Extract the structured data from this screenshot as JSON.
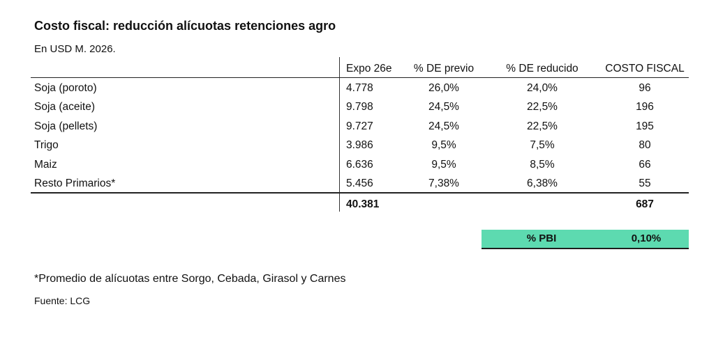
{
  "title": "Costo fiscal: reducción alícuotas retenciones agro",
  "subtitle": "En USD M. 2026.",
  "table": {
    "headers": [
      "Expo 26e",
      "% DE previo",
      "% DE reducido",
      "COSTO FISCAL"
    ],
    "rows": [
      {
        "label": "Soja (poroto)",
        "expo": "4.778",
        "previo": "26,0%",
        "reducido": "24,0%",
        "costo": "96"
      },
      {
        "label": "Soja (aceite)",
        "expo": "9.798",
        "previo": "24,5%",
        "reducido": "22,5%",
        "costo": "196"
      },
      {
        "label": "Soja (pellets)",
        "expo": "9.727",
        "previo": "24,5%",
        "reducido": "22,5%",
        "costo": "195"
      },
      {
        "label": "Trigo",
        "expo": "3.986",
        "previo": "9,5%",
        "reducido": "7,5%",
        "costo": "80"
      },
      {
        "label": "Maiz",
        "expo": "6.636",
        "previo": "9,5%",
        "reducido": "8,5%",
        "costo": "66"
      },
      {
        "label": "Resto Primarios*",
        "expo": "5.456",
        "previo": "7,38%",
        "reducido": "6,38%",
        "costo": "55"
      }
    ],
    "totals": {
      "expo": "40.381",
      "costo": "687"
    }
  },
  "pbi": {
    "label": "% PBI",
    "value": "0,10%"
  },
  "footnote": "*Promedio de alícuotas entre Sorgo, Cebada, Girasol y Carnes",
  "source": "Fuente: LCG",
  "colors": {
    "pbi_highlight": "#5ddab0"
  }
}
